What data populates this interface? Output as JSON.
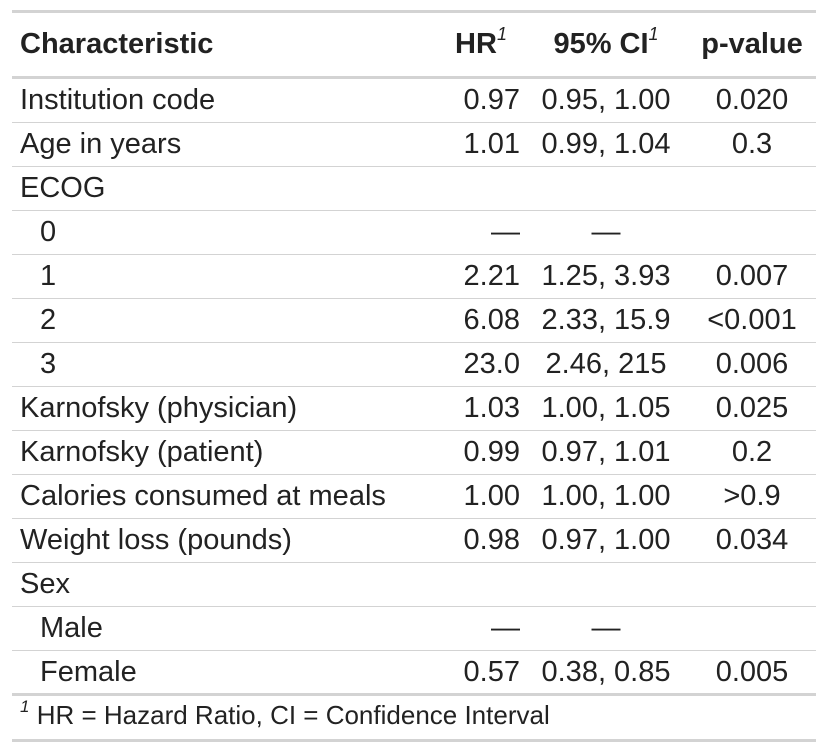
{
  "table": {
    "headers": {
      "characteristic": "Characteristic",
      "hr": "HR",
      "hr_sup": "1",
      "ci": "95% CI",
      "ci_sup": "1",
      "pvalue": "p-value"
    },
    "rows": [
      {
        "label": "Institution code",
        "hr": "0.97",
        "ci": "0.95, 1.00",
        "p": "0.020"
      },
      {
        "label": "Age in years",
        "hr": "1.01",
        "ci": "0.99, 1.04",
        "p": "0.3"
      },
      {
        "label": "ECOG",
        "hr": "",
        "ci": "",
        "p": ""
      },
      {
        "label": "0",
        "hr": "—",
        "ci": "—",
        "p": ""
      },
      {
        "label": "1",
        "hr": "2.21",
        "ci": "1.25, 3.93",
        "p": "0.007"
      },
      {
        "label": "2",
        "hr": "6.08",
        "ci": "2.33, 15.9",
        "p": "<0.001"
      },
      {
        "label": "3",
        "hr": "23.0",
        "ci": "2.46, 215",
        "p": "0.006"
      },
      {
        "label": "Karnofsky (physician)",
        "hr": "1.03",
        "ci": "1.00, 1.05",
        "p": "0.025"
      },
      {
        "label": "Karnofsky (patient)",
        "hr": "0.99",
        "ci": "0.97, 1.01",
        "p": "0.2"
      },
      {
        "label": "Calories consumed at meals",
        "hr": "1.00",
        "ci": "1.00, 1.00",
        "p": ">0.9"
      },
      {
        "label": "Weight loss (pounds)",
        "hr": "0.98",
        "ci": "0.97, 1.00",
        "p": "0.034"
      },
      {
        "label": "Sex",
        "hr": "",
        "ci": "",
        "p": ""
      },
      {
        "label": "Male",
        "hr": "—",
        "ci": "—",
        "p": ""
      },
      {
        "label": "Female",
        "hr": "0.57",
        "ci": "0.38, 0.85",
        "p": "0.005"
      }
    ]
  },
  "footnote": {
    "marker": "1",
    "text": "HR = Hazard Ratio, CI = Confidence Interval"
  }
}
